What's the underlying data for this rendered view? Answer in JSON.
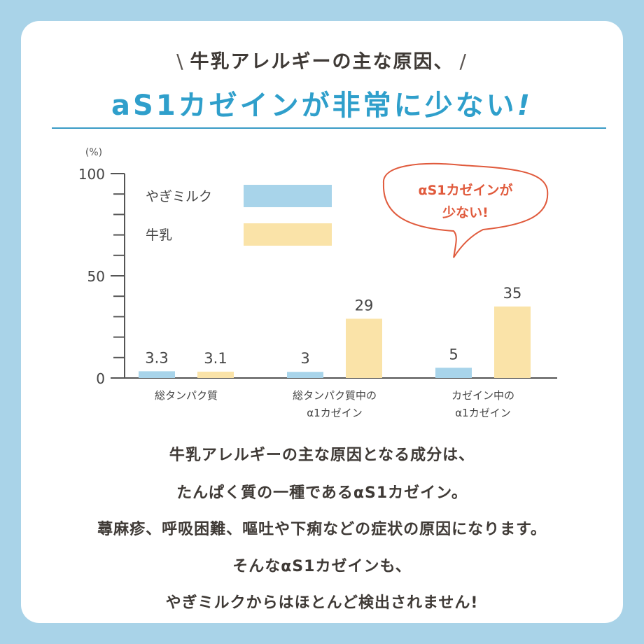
{
  "header": {
    "slash_left": "\\",
    "line1": "牛乳アレルギーの主な原因、",
    "slash_right": "/",
    "line2": "aS1カゼインが非常に少ない",
    "line2_mark": "!"
  },
  "colors": {
    "background": "#a9d3e8",
    "title_blue": "#2f9fcb",
    "goat_milk": "#a8d4ea",
    "cow_milk": "#fae3a8",
    "callout": "#e05a3c"
  },
  "chart_data": {
    "type": "bar",
    "unit_label": "(%)",
    "ylim": [
      0,
      100
    ],
    "yticks": [
      0,
      50,
      100
    ],
    "grid": false,
    "legend_position": "top-left",
    "categories": [
      [
        "総タンパク質"
      ],
      [
        "総タンパク質中の",
        "α1カゼイン"
      ],
      [
        "カゼイン中の",
        "α1カゼイン"
      ]
    ],
    "series": [
      {
        "name": "やぎミルク",
        "color": "#a8d4ea",
        "values": [
          3.3,
          3,
          5
        ],
        "labels": [
          "3.3",
          "3",
          "5"
        ]
      },
      {
        "name": "牛乳",
        "color": "#fae3a8",
        "values": [
          3.1,
          29,
          35
        ],
        "labels": [
          "3.1",
          "29",
          "35"
        ]
      }
    ],
    "annotation": [
      "αS1カゼインが",
      "少ない!"
    ]
  },
  "body": {
    "lines": [
      "牛乳アレルギーの主な原因となる成分は、",
      "たんぱく質の一種であるαS1カゼイン。",
      "蕁麻疹、呼吸困難、嘔吐や下痢などの症状の原因になります。",
      "そんなαS1カゼインも、",
      "やぎミルクからはほとんど検出されません!"
    ]
  }
}
